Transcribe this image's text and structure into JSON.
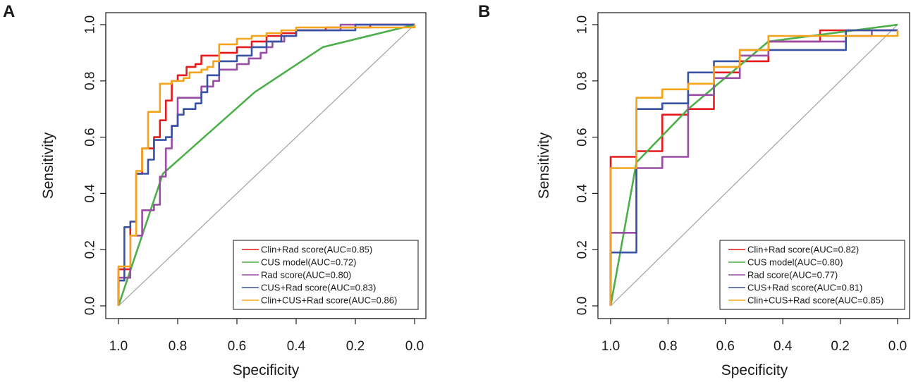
{
  "chart_data": [
    {
      "panel": "A",
      "type": "line",
      "xlabel": "Specificity",
      "ylabel": "Sensitivity",
      "xlim": [
        1.0,
        0.0
      ],
      "ylim": [
        0.0,
        1.0
      ],
      "x_ticks": [
        "1.0",
        "0.8",
        "0.6",
        "0.4",
        "0.2",
        "0.0"
      ],
      "y_ticks": [
        "0.0",
        "0.2",
        "0.4",
        "0.6",
        "0.8",
        "1.0"
      ],
      "legend_position": "bottom-right",
      "reference_line": "diagonal",
      "series": [
        {
          "name": "Clin+Rad score(AUC=0.85)",
          "color": "#e41a1c",
          "points": [
            [
              1.0,
              0.0
            ],
            [
              1.0,
              0.13
            ],
            [
              0.96,
              0.13
            ],
            [
              0.96,
              0.3
            ],
            [
              0.94,
              0.3
            ],
            [
              0.94,
              0.47
            ],
            [
              0.92,
              0.47
            ],
            [
              0.92,
              0.56
            ],
            [
              0.88,
              0.56
            ],
            [
              0.88,
              0.6
            ],
            [
              0.86,
              0.6
            ],
            [
              0.86,
              0.66
            ],
            [
              0.84,
              0.66
            ],
            [
              0.84,
              0.73
            ],
            [
              0.82,
              0.73
            ],
            [
              0.82,
              0.8
            ],
            [
              0.8,
              0.8
            ],
            [
              0.8,
              0.82
            ],
            [
              0.77,
              0.82
            ],
            [
              0.77,
              0.85
            ],
            [
              0.74,
              0.85
            ],
            [
              0.74,
              0.86
            ],
            [
              0.72,
              0.86
            ],
            [
              0.72,
              0.89
            ],
            [
              0.66,
              0.89
            ],
            [
              0.66,
              0.9
            ],
            [
              0.6,
              0.9
            ],
            [
              0.6,
              0.92
            ],
            [
              0.55,
              0.92
            ],
            [
              0.55,
              0.94
            ],
            [
              0.5,
              0.94
            ],
            [
              0.5,
              0.96
            ],
            [
              0.45,
              0.96
            ],
            [
              0.45,
              0.97
            ],
            [
              0.4,
              0.97
            ],
            [
              0.4,
              0.98
            ],
            [
              0.3,
              0.98
            ],
            [
              0.3,
              0.99
            ],
            [
              0.15,
              0.99
            ],
            [
              0.15,
              1.0
            ],
            [
              0.0,
              1.0
            ]
          ]
        },
        {
          "name": "CUS model(AUC=0.72)",
          "color": "#4daf4a",
          "points": [
            [
              1.0,
              0.0
            ],
            [
              0.85,
              0.47
            ],
            [
              0.54,
              0.76
            ],
            [
              0.31,
              0.92
            ],
            [
              0.0,
              1.0
            ]
          ]
        },
        {
          "name": "Rad score(AUC=0.80)",
          "color": "#984ea3",
          "points": [
            [
              1.0,
              0.0
            ],
            [
              1.0,
              0.1
            ],
            [
              0.96,
              0.1
            ],
            [
              0.96,
              0.25
            ],
            [
              0.92,
              0.25
            ],
            [
              0.92,
              0.34
            ],
            [
              0.88,
              0.34
            ],
            [
              0.88,
              0.36
            ],
            [
              0.86,
              0.36
            ],
            [
              0.86,
              0.46
            ],
            [
              0.84,
              0.46
            ],
            [
              0.84,
              0.56
            ],
            [
              0.82,
              0.56
            ],
            [
              0.82,
              0.64
            ],
            [
              0.8,
              0.64
            ],
            [
              0.8,
              0.74
            ],
            [
              0.72,
              0.74
            ],
            [
              0.72,
              0.78
            ],
            [
              0.68,
              0.78
            ],
            [
              0.68,
              0.8
            ],
            [
              0.66,
              0.8
            ],
            [
              0.66,
              0.84
            ],
            [
              0.6,
              0.84
            ],
            [
              0.6,
              0.86
            ],
            [
              0.56,
              0.86
            ],
            [
              0.56,
              0.88
            ],
            [
              0.52,
              0.88
            ],
            [
              0.52,
              0.9
            ],
            [
              0.5,
              0.9
            ],
            [
              0.5,
              0.92
            ],
            [
              0.48,
              0.92
            ],
            [
              0.48,
              0.94
            ],
            [
              0.44,
              0.94
            ],
            [
              0.44,
              0.96
            ],
            [
              0.4,
              0.96
            ],
            [
              0.4,
              0.98
            ],
            [
              0.25,
              0.98
            ],
            [
              0.25,
              1.0
            ],
            [
              0.0,
              1.0
            ]
          ]
        },
        {
          "name": "CUS+Rad score(AUC=0.83)",
          "color": "#3953a4",
          "points": [
            [
              1.0,
              0.0
            ],
            [
              1.0,
              0.09
            ],
            [
              0.98,
              0.09
            ],
            [
              0.98,
              0.28
            ],
            [
              0.96,
              0.28
            ],
            [
              0.96,
              0.3
            ],
            [
              0.94,
              0.3
            ],
            [
              0.94,
              0.47
            ],
            [
              0.9,
              0.47
            ],
            [
              0.9,
              0.52
            ],
            [
              0.88,
              0.52
            ],
            [
              0.88,
              0.59
            ],
            [
              0.84,
              0.59
            ],
            [
              0.84,
              0.6
            ],
            [
              0.82,
              0.6
            ],
            [
              0.82,
              0.64
            ],
            [
              0.8,
              0.64
            ],
            [
              0.8,
              0.68
            ],
            [
              0.78,
              0.68
            ],
            [
              0.78,
              0.7
            ],
            [
              0.74,
              0.7
            ],
            [
              0.74,
              0.72
            ],
            [
              0.72,
              0.72
            ],
            [
              0.72,
              0.76
            ],
            [
              0.7,
              0.76
            ],
            [
              0.7,
              0.82
            ],
            [
              0.66,
              0.82
            ],
            [
              0.66,
              0.87
            ],
            [
              0.6,
              0.87
            ],
            [
              0.6,
              0.89
            ],
            [
              0.55,
              0.89
            ],
            [
              0.55,
              0.92
            ],
            [
              0.5,
              0.92
            ],
            [
              0.5,
              0.94
            ],
            [
              0.45,
              0.94
            ],
            [
              0.45,
              0.96
            ],
            [
              0.4,
              0.96
            ],
            [
              0.4,
              0.98
            ],
            [
              0.2,
              0.98
            ],
            [
              0.2,
              1.0
            ],
            [
              0.0,
              1.0
            ]
          ]
        },
        {
          "name": "Clin+CUS+Rad score(AUC=0.86)",
          "color": "#f5a31a",
          "points": [
            [
              1.0,
              0.0
            ],
            [
              1.0,
              0.14
            ],
            [
              0.96,
              0.14
            ],
            [
              0.96,
              0.25
            ],
            [
              0.94,
              0.25
            ],
            [
              0.94,
              0.48
            ],
            [
              0.92,
              0.48
            ],
            [
              0.92,
              0.56
            ],
            [
              0.9,
              0.56
            ],
            [
              0.9,
              0.69
            ],
            [
              0.86,
              0.69
            ],
            [
              0.86,
              0.79
            ],
            [
              0.82,
              0.79
            ],
            [
              0.82,
              0.8
            ],
            [
              0.78,
              0.8
            ],
            [
              0.78,
              0.81
            ],
            [
              0.76,
              0.81
            ],
            [
              0.76,
              0.83
            ],
            [
              0.72,
              0.83
            ],
            [
              0.72,
              0.84
            ],
            [
              0.7,
              0.84
            ],
            [
              0.7,
              0.85
            ],
            [
              0.68,
              0.85
            ],
            [
              0.68,
              0.87
            ],
            [
              0.66,
              0.87
            ],
            [
              0.66,
              0.93
            ],
            [
              0.6,
              0.93
            ],
            [
              0.6,
              0.95
            ],
            [
              0.55,
              0.95
            ],
            [
              0.55,
              0.96
            ],
            [
              0.5,
              0.96
            ],
            [
              0.5,
              0.97
            ],
            [
              0.45,
              0.97
            ],
            [
              0.45,
              0.98
            ],
            [
              0.4,
              0.98
            ],
            [
              0.4,
              0.99
            ],
            [
              0.0,
              0.99
            ],
            [
              0.0,
              1.0
            ]
          ]
        }
      ]
    },
    {
      "panel": "B",
      "type": "line",
      "xlabel": "Specificity",
      "ylabel": "Sensitivity",
      "xlim": [
        1.0,
        0.0
      ],
      "ylim": [
        0.0,
        1.0
      ],
      "x_ticks": [
        "1.0",
        "0.8",
        "0.6",
        "0.4",
        "0.2",
        "0.0"
      ],
      "y_ticks": [
        "0.0",
        "0.2",
        "0.4",
        "0.6",
        "0.8",
        "1.0"
      ],
      "legend_position": "bottom-right",
      "reference_line": "diagonal",
      "series": [
        {
          "name": "Clin+Rad score(AUC=0.82)",
          "color": "#e41a1c",
          "points": [
            [
              1.0,
              0.0
            ],
            [
              1.0,
              0.53
            ],
            [
              0.91,
              0.53
            ],
            [
              0.91,
              0.55
            ],
            [
              0.82,
              0.55
            ],
            [
              0.82,
              0.68
            ],
            [
              0.73,
              0.68
            ],
            [
              0.73,
              0.7
            ],
            [
              0.64,
              0.7
            ],
            [
              0.64,
              0.83
            ],
            [
              0.55,
              0.83
            ],
            [
              0.55,
              0.87
            ],
            [
              0.45,
              0.87
            ],
            [
              0.45,
              0.94
            ],
            [
              0.27,
              0.94
            ],
            [
              0.27,
              0.98
            ],
            [
              0.0,
              0.98
            ]
          ]
        },
        {
          "name": "CUS model(AUC=0.80)",
          "color": "#4daf4a",
          "points": [
            [
              1.0,
              0.0
            ],
            [
              0.91,
              0.51
            ],
            [
              0.73,
              0.7
            ],
            [
              0.45,
              0.94
            ],
            [
              0.0,
              1.0
            ]
          ]
        },
        {
          "name": "Rad score(AUC=0.77)",
          "color": "#984ea3",
          "points": [
            [
              1.0,
              0.0
            ],
            [
              1.0,
              0.26
            ],
            [
              0.91,
              0.26
            ],
            [
              0.91,
              0.49
            ],
            [
              0.82,
              0.49
            ],
            [
              0.82,
              0.53
            ],
            [
              0.73,
              0.53
            ],
            [
              0.73,
              0.75
            ],
            [
              0.64,
              0.75
            ],
            [
              0.64,
              0.81
            ],
            [
              0.55,
              0.81
            ],
            [
              0.55,
              0.89
            ],
            [
              0.45,
              0.89
            ],
            [
              0.45,
              0.94
            ],
            [
              0.18,
              0.94
            ],
            [
              0.18,
              0.96
            ],
            [
              0.09,
              0.96
            ],
            [
              0.09,
              0.98
            ],
            [
              0.0,
              0.98
            ]
          ]
        },
        {
          "name": "CUS+Rad score(AUC=0.81)",
          "color": "#3953a4",
          "points": [
            [
              1.0,
              0.0
            ],
            [
              1.0,
              0.19
            ],
            [
              0.91,
              0.19
            ],
            [
              0.91,
              0.7
            ],
            [
              0.82,
              0.7
            ],
            [
              0.82,
              0.72
            ],
            [
              0.73,
              0.72
            ],
            [
              0.73,
              0.83
            ],
            [
              0.64,
              0.83
            ],
            [
              0.64,
              0.87
            ],
            [
              0.55,
              0.87
            ],
            [
              0.55,
              0.91
            ],
            [
              0.18,
              0.91
            ],
            [
              0.18,
              0.98
            ],
            [
              0.0,
              0.98
            ]
          ]
        },
        {
          "name": "Clin+CUS+Rad score(AUC=0.85)",
          "color": "#f5a31a",
          "points": [
            [
              1.0,
              0.0
            ],
            [
              1.0,
              0.49
            ],
            [
              0.91,
              0.49
            ],
            [
              0.91,
              0.74
            ],
            [
              0.82,
              0.74
            ],
            [
              0.82,
              0.77
            ],
            [
              0.73,
              0.77
            ],
            [
              0.73,
              0.79
            ],
            [
              0.64,
              0.79
            ],
            [
              0.64,
              0.85
            ],
            [
              0.55,
              0.85
            ],
            [
              0.55,
              0.91
            ],
            [
              0.45,
              0.91
            ],
            [
              0.45,
              0.96
            ],
            [
              0.27,
              0.96
            ],
            [
              0.27,
              0.96
            ],
            [
              0.0,
              0.96
            ],
            [
              0.0,
              0.98
            ]
          ]
        }
      ]
    }
  ]
}
